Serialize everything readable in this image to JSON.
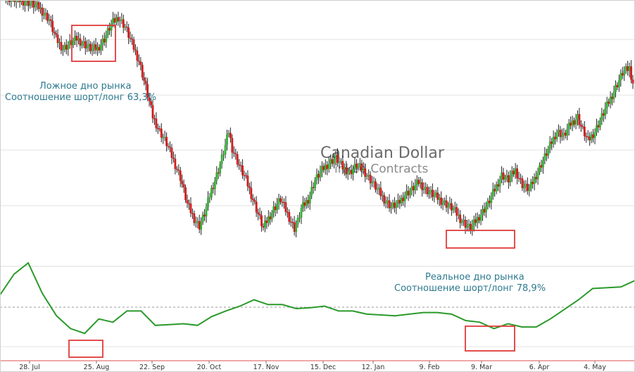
{
  "watermark": {
    "title": "Canadian Dollar",
    "subtitle": "inked Contracts"
  },
  "annotations": {
    "false_bottom": {
      "line1": "Ложное дно рынка",
      "line2": "Соотношение шорт/лонг 63,3%"
    },
    "real_bottom": {
      "line1": "Реальное дно рынка",
      "line2": "Соотношение шорт/лонг 78,9%"
    }
  },
  "colors": {
    "up": "#33b233",
    "down": "#d11a1a",
    "ratio_line": "#2a9a2a",
    "box": "#e03a3a",
    "grid": "#e3e3e3",
    "note": "#2d7a8f"
  },
  "chart_data": [
    {
      "type": "candlestick",
      "title": "",
      "xlabel": "",
      "ylabel": "",
      "ylim": [
        0,
        100
      ],
      "grid": true,
      "x_ticks": [
        "28. Jul",
        "25. Aug",
        "22. Sep",
        "20. Oct",
        "17. Nov",
        "15. Dec",
        "12. Jan",
        "9. Feb",
        "9. Mar",
        "6. Apr",
        "4. May"
      ],
      "close_path": [
        [
          0,
          101
        ],
        [
          8,
          100
        ],
        [
          14,
          99
        ],
        [
          20,
          97
        ],
        [
          26,
          92
        ],
        [
          30,
          84
        ],
        [
          34,
          80
        ],
        [
          38,
          82
        ],
        [
          42,
          84
        ],
        [
          46,
          82
        ],
        [
          50,
          80
        ],
        [
          54,
          80
        ],
        [
          58,
          84
        ],
        [
          62,
          90
        ],
        [
          66,
          93
        ],
        [
          70,
          89
        ],
        [
          74,
          82
        ],
        [
          78,
          75
        ],
        [
          82,
          64
        ],
        [
          86,
          52
        ],
        [
          90,
          46
        ],
        [
          94,
          41
        ],
        [
          98,
          34
        ],
        [
          102,
          27
        ],
        [
          106,
          16
        ],
        [
          110,
          10
        ],
        [
          113,
          7
        ],
        [
          116,
          12
        ],
        [
          120,
          22
        ],
        [
          124,
          30
        ],
        [
          128,
          40
        ],
        [
          130,
          46
        ],
        [
          132,
          39
        ],
        [
          136,
          32
        ],
        [
          140,
          26
        ],
        [
          144,
          18
        ],
        [
          148,
          10
        ],
        [
          150,
          6
        ],
        [
          152,
          9
        ],
        [
          156,
          14
        ],
        [
          160,
          18
        ],
        [
          164,
          12
        ],
        [
          168,
          6
        ],
        [
          170,
          9
        ],
        [
          172,
          14
        ],
        [
          176,
          18
        ],
        [
          180,
          26
        ],
        [
          184,
          30
        ],
        [
          188,
          33
        ],
        [
          192,
          35
        ],
        [
          196,
          31
        ],
        [
          200,
          29
        ],
        [
          204,
          32
        ],
        [
          208,
          30
        ],
        [
          212,
          26
        ],
        [
          216,
          22
        ],
        [
          220,
          18
        ],
        [
          224,
          15
        ],
        [
          228,
          16
        ],
        [
          232,
          20
        ],
        [
          236,
          22
        ],
        [
          240,
          25
        ],
        [
          244,
          22
        ],
        [
          248,
          20
        ],
        [
          252,
          18
        ],
        [
          256,
          16
        ],
        [
          260,
          14
        ],
        [
          264,
          10
        ],
        [
          268,
          7
        ],
        [
          270,
          6
        ],
        [
          272,
          8
        ],
        [
          276,
          12
        ],
        [
          280,
          16
        ],
        [
          284,
          22
        ],
        [
          288,
          28
        ],
        [
          292,
          26
        ],
        [
          296,
          30
        ],
        [
          300,
          24
        ],
        [
          304,
          22
        ],
        [
          308,
          28
        ],
        [
          312,
          34
        ],
        [
          316,
          40
        ],
        [
          320,
          46
        ],
        [
          324,
          44
        ],
        [
          328,
          49
        ],
        [
          332,
          52
        ],
        [
          334,
          48
        ],
        [
          338,
          42
        ],
        [
          342,
          46
        ],
        [
          346,
          52
        ],
        [
          350,
          58
        ],
        [
          354,
          64
        ],
        [
          358,
          70
        ],
        [
          362,
          72
        ],
        [
          364,
          66
        ]
      ]
    },
    {
      "type": "line",
      "title": "",
      "xlabel": "",
      "ylabel": "",
      "series": [
        {
          "values": [
            38,
            51,
            58,
            39,
            25,
            17,
            14,
            23,
            21,
            28,
            28,
            19,
            19.5,
            20,
            19,
            24.5,
            28,
            31,
            35,
            32,
            32,
            29.5,
            30,
            31,
            28,
            28,
            26,
            25.5,
            25,
            26,
            27,
            27,
            26,
            22,
            21,
            17,
            20,
            18,
            18,
            23,
            29,
            35,
            42,
            42.5,
            43,
            47
          ]
        }
      ]
    }
  ]
}
